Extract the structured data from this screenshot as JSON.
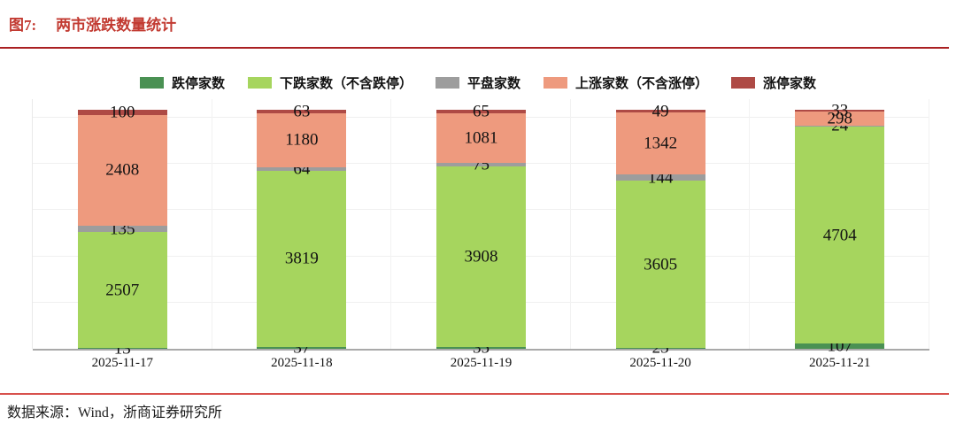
{
  "figure": {
    "label": "图7:",
    "title": "两市涨跌数量统计",
    "source": "数据来源：Wind，浙商证券研究所"
  },
  "colors": {
    "title_red": "#c23a31",
    "top_rule": "#aa2022",
    "bottom_rule": "#d8514d",
    "grid": "#f0f0f0",
    "axis": "#a9a9a9"
  },
  "chart_data": {
    "type": "bar",
    "stacked": true,
    "title": "两市涨跌数量统计",
    "categories": [
      "2025-11-17",
      "2025-11-18",
      "2025-11-19",
      "2025-11-20",
      "2025-11-21"
    ],
    "series": [
      {
        "name": "跌停家数",
        "color": "#4a9153",
        "values": [
          13,
          37,
          35,
          25,
          107
        ]
      },
      {
        "name": "下跌家数（不含跌停）",
        "color": "#a6d55e",
        "values": [
          2507,
          3819,
          3908,
          3605,
          4704
        ]
      },
      {
        "name": "平盘家数",
        "color": "#9d9d9d",
        "values": [
          135,
          64,
          75,
          144,
          24
        ]
      },
      {
        "name": "上涨家数（不含涨停）",
        "color": "#ee9a7e",
        "values": [
          2408,
          1180,
          1081,
          1342,
          298
        ]
      },
      {
        "name": "涨停家数",
        "color": "#ae4a45",
        "values": [
          100,
          63,
          65,
          49,
          33
        ]
      }
    ],
    "xlabel": "",
    "ylabel": "",
    "ylim": [
      0,
      5400
    ],
    "grid_interval": 1000,
    "grid": true,
    "legend_position": "top",
    "data_labels": true
  }
}
